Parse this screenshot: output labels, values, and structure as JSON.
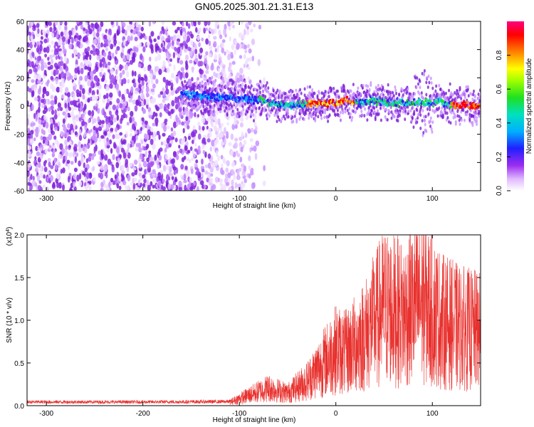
{
  "title": "GN05.2025.301.21.31.E13",
  "chart_data": [
    {
      "type": "heatmap",
      "xlabel": "Height of straight line (km)",
      "ylabel": "Frequency (Hz)",
      "xlim": [
        -320,
        150
      ],
      "ylim": [
        -60,
        60
      ],
      "xticks": [
        -300,
        -200,
        -100,
        0,
        100
      ],
      "yticks": [
        60,
        40,
        20,
        0,
        -20,
        -40,
        -60
      ],
      "colorbar": {
        "label": "Normalized spectral amplitude",
        "range": [
          0,
          1
        ],
        "ticks": [
          "0.0",
          "0.2",
          "0.4",
          "0.6",
          "0.8"
        ]
      },
      "description_points": {
        "noise_region_x": [
          -320,
          -115
        ],
        "signal_band_start_x": -160,
        "signal_center_freq": [
          [
            -160,
            8
          ],
          [
            -140,
            7
          ],
          [
            -120,
            6
          ],
          [
            -100,
            5
          ],
          [
            -80,
            4
          ],
          [
            -60,
            1
          ],
          [
            -40,
            1
          ],
          [
            -20,
            2
          ],
          [
            0,
            2
          ],
          [
            10,
            4
          ],
          [
            20,
            2
          ],
          [
            30,
            3
          ],
          [
            40,
            4
          ],
          [
            50,
            2
          ],
          [
            60,
            2
          ],
          [
            70,
            3
          ],
          [
            80,
            2
          ],
          [
            90,
            3
          ],
          [
            100,
            2
          ],
          [
            110,
            3
          ],
          [
            120,
            1
          ],
          [
            130,
            1
          ],
          [
            140,
            0
          ],
          [
            150,
            0
          ]
        ]
      }
    },
    {
      "type": "line",
      "xlabel": "Height of straight line (km)",
      "ylabel": "SNR (10 * v/v)",
      "scale_label": "(x10",
      "scale_exp": "4",
      "scale_close": ")",
      "xlim": [
        -320,
        150
      ],
      "ylim": [
        0,
        20000
      ],
      "xticks": [
        -300,
        -200,
        -100,
        0,
        100
      ],
      "yticks": [
        "0.0",
        "0.5",
        "1.0",
        "1.5",
        "2.0"
      ],
      "color": "#e8312e",
      "series_summary": [
        {
          "x": -320,
          "y": 450
        },
        {
          "x": -200,
          "y": 450
        },
        {
          "x": -110,
          "y": 500
        },
        {
          "x": -90,
          "y": 1500
        },
        {
          "x": -70,
          "y": 2500
        },
        {
          "x": -50,
          "y": 1800
        },
        {
          "x": -30,
          "y": 3500
        },
        {
          "x": -20,
          "y": 5000
        },
        {
          "x": -10,
          "y": 6500
        },
        {
          "x": 0,
          "y": 8000
        },
        {
          "x": 10,
          "y": 7500
        },
        {
          "x": 30,
          "y": 10000
        },
        {
          "x": 50,
          "y": 14000
        },
        {
          "x": 70,
          "y": 13000
        },
        {
          "x": 90,
          "y": 15000
        },
        {
          "x": 110,
          "y": 12000
        },
        {
          "x": 130,
          "y": 11000
        },
        {
          "x": 150,
          "y": 10500
        }
      ]
    }
  ]
}
